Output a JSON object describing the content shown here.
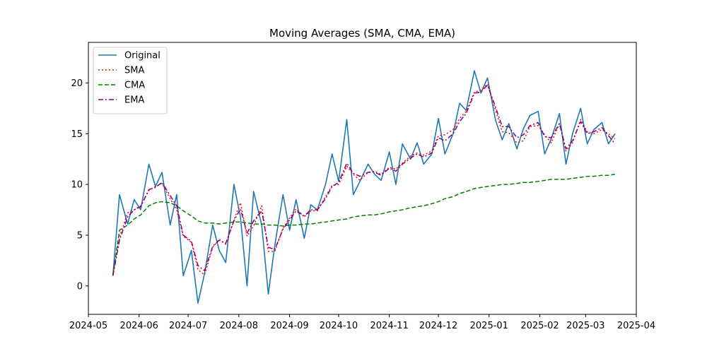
{
  "chart_data": {
    "type": "line",
    "title": "Moving Averages (SMA, CMA, EMA)",
    "xlabel": "",
    "ylabel": "",
    "x_ticks": [
      "2024-05",
      "2024-06",
      "2024-07",
      "2024-08",
      "2024-09",
      "2024-10",
      "2024-11",
      "2024-12",
      "2025-01",
      "2025-02",
      "2025-03",
      "2025-04"
    ],
    "y_ticks": [
      0,
      5,
      10,
      15,
      20
    ],
    "xlim": [
      "2024-05-01",
      "2025-04-01"
    ],
    "ylim": [
      -2.8,
      24.0
    ],
    "grid": false,
    "legend_position": "upper-left",
    "x": [
      "2024-05-16",
      "2024-05-20",
      "2024-05-25",
      "2024-05-29",
      "2024-06-02",
      "2024-06-07",
      "2024-06-11",
      "2024-06-15",
      "2024-06-20",
      "2024-06-24",
      "2024-06-28",
      "2024-07-03",
      "2024-07-07",
      "2024-07-11",
      "2024-07-16",
      "2024-07-20",
      "2024-07-24",
      "2024-07-29",
      "2024-08-02",
      "2024-08-06",
      "2024-08-10",
      "2024-08-15",
      "2024-08-19",
      "2024-08-23",
      "2024-08-28",
      "2024-09-01",
      "2024-09-05",
      "2024-09-10",
      "2024-09-14",
      "2024-09-18",
      "2024-09-23",
      "2024-09-27",
      "2024-10-01",
      "2024-10-06",
      "2024-10-10",
      "2024-10-14",
      "2024-10-19",
      "2024-10-23",
      "2024-10-27",
      "2024-11-01",
      "2024-11-05",
      "2024-11-09",
      "2024-11-14",
      "2024-11-18",
      "2024-11-22",
      "2024-11-27",
      "2024-12-01",
      "2024-12-05",
      "2024-12-10",
      "2024-12-14",
      "2024-12-18",
      "2024-12-23",
      "2024-12-27",
      "2024-12-31",
      "2025-01-05",
      "2025-01-09",
      "2025-01-13",
      "2025-01-18",
      "2025-01-22",
      "2025-01-26",
      "2025-01-31",
      "2025-02-04",
      "2025-02-08",
      "2025-02-13",
      "2025-02-17",
      "2025-02-21",
      "2025-02-26",
      "2025-03-02",
      "2025-03-06",
      "2025-03-11",
      "2025-03-15",
      "2025-03-19"
    ],
    "series": [
      {
        "name": "Original",
        "color": "#1f77b4",
        "style": "solid",
        "values": [
          1.0,
          9.0,
          6.1,
          8.5,
          7.5,
          12.0,
          9.8,
          11.2,
          6.0,
          9.0,
          1.0,
          3.5,
          -1.7,
          1.2,
          6.0,
          3.5,
          2.3,
          10.0,
          6.8,
          0.0,
          9.3,
          6.0,
          -0.8,
          4.0,
          9.0,
          5.5,
          8.5,
          4.7,
          8.0,
          7.5,
          10.0,
          13.0,
          10.3,
          16.4,
          9.0,
          10.3,
          12.0,
          11.0,
          10.4,
          13.2,
          10.0,
          14.0,
          12.5,
          14.1,
          12.0,
          13.0,
          16.5,
          13.0,
          15.0,
          18.0,
          17.3,
          21.2,
          19.0,
          20.5,
          16.3,
          14.4,
          16.0,
          13.5,
          15.5,
          16.8,
          17.2,
          13.0,
          14.5,
          17.0,
          12.0,
          15.0,
          17.5,
          14.0,
          15.4,
          16.1,
          14.0,
          15.0
        ]
      },
      {
        "name": "SMA",
        "color": "#ff0000",
        "style": "dotted",
        "values": [
          1.1,
          4.8,
          7.2,
          7.5,
          7.9,
          9.4,
          9.8,
          10.1,
          8.6,
          7.5,
          4.9,
          4.3,
          1.6,
          1.1,
          3.8,
          4.6,
          4.1,
          6.5,
          8.2,
          4.9,
          5.9,
          7.9,
          3.4,
          3.4,
          5.7,
          6.7,
          7.6,
          6.8,
          7.4,
          7.4,
          8.8,
          9.9,
          10.0,
          11.8,
          11.0,
          10.4,
          11.2,
          11.3,
          11.0,
          11.7,
          11.5,
          12.1,
          12.8,
          13.1,
          12.9,
          13.3,
          14.8,
          14.9,
          15.4,
          16.5,
          17.2,
          19.1,
          19.3,
          19.9,
          17.3,
          15.2,
          15.1,
          14.1,
          14.3,
          15.7,
          15.8,
          14.9,
          14.1,
          16.0,
          13.3,
          14.1,
          16.4,
          15.2,
          15.0,
          15.4,
          15.0,
          14.5
        ]
      },
      {
        "name": "CMA",
        "color": "#008000",
        "style": "dashed",
        "values": [
          1.0,
          5.5,
          6.0,
          6.6,
          7.0,
          7.9,
          8.2,
          8.3,
          8.2,
          7.9,
          7.4,
          6.9,
          6.4,
          6.2,
          6.2,
          6.1,
          6.2,
          6.3,
          6.3,
          6.2,
          6.1,
          6.1,
          6.0,
          6.0,
          5.9,
          6.0,
          6.0,
          6.1,
          6.1,
          6.2,
          6.3,
          6.4,
          6.5,
          6.6,
          6.8,
          6.9,
          7.0,
          7.0,
          7.1,
          7.3,
          7.4,
          7.5,
          7.7,
          7.8,
          7.9,
          8.1,
          8.3,
          8.6,
          8.8,
          9.1,
          9.3,
          9.6,
          9.7,
          9.8,
          9.9,
          10.0,
          10.0,
          10.1,
          10.2,
          10.2,
          10.3,
          10.4,
          10.5,
          10.5,
          10.5,
          10.6,
          10.7,
          10.8,
          10.8,
          10.9,
          10.9,
          11.0
        ]
      },
      {
        "name": "EMA",
        "color": "#800080",
        "style": "dashdot",
        "values": [
          1.0,
          4.5,
          6.8,
          7.5,
          7.8,
          9.5,
          9.7,
          10.2,
          8.9,
          7.9,
          5.0,
          4.4,
          2.0,
          1.5,
          3.9,
          4.5,
          4.2,
          6.4,
          7.6,
          5.2,
          6.4,
          7.4,
          3.8,
          3.6,
          5.6,
          6.5,
          7.4,
          6.9,
          7.5,
          7.5,
          8.6,
          9.8,
          10.2,
          12.1,
          11.1,
          10.8,
          11.2,
          11.2,
          10.9,
          11.6,
          11.3,
          12.0,
          12.6,
          13.0,
          12.7,
          13.1,
          14.6,
          14.3,
          15.0,
          16.2,
          17.0,
          19.0,
          19.1,
          19.8,
          17.6,
          15.7,
          15.7,
          14.6,
          14.9,
          15.8,
          16.1,
          14.7,
          14.6,
          16.0,
          13.5,
          14.3,
          16.2,
          15.0,
          15.2,
          15.6,
          14.8,
          14.0
        ]
      }
    ]
  }
}
